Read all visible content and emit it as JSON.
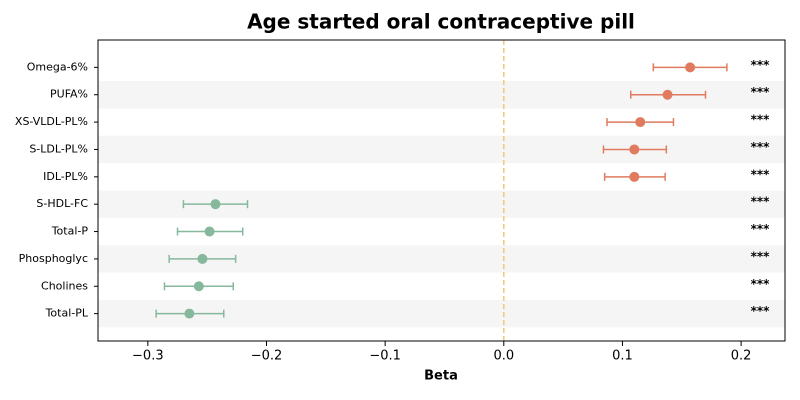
{
  "chart_data": {
    "type": "forest",
    "title": "Age started oral contraceptive pill",
    "x_label": "Beta",
    "categories": [
      "Omega-6%",
      "PUFA%",
      "XS-VLDL-PL%",
      "S-LDL-PL%",
      "IDL-PL%",
      "S-HDL-FC",
      "Total-P",
      "Phosphoglyc",
      "Cholines",
      "Total-PL"
    ],
    "values": [
      0.157,
      0.138,
      0.115,
      0.11,
      0.11,
      -0.243,
      -0.248,
      -0.254,
      -0.257,
      -0.265
    ],
    "lower": [
      0.126,
      0.107,
      0.087,
      0.084,
      0.085,
      -0.27,
      -0.275,
      -0.282,
      -0.286,
      -0.293
    ],
    "upper": [
      0.188,
      0.17,
      0.143,
      0.137,
      0.136,
      -0.216,
      -0.22,
      -0.226,
      -0.228,
      -0.236
    ],
    "colors": [
      "#e07b5f",
      "#e07b5f",
      "#e07b5f",
      "#e07b5f",
      "#e07b5f",
      "#86b89c",
      "#86b89c",
      "#86b89c",
      "#86b89c",
      "#86b89c"
    ],
    "annotations": [
      "***",
      "***",
      "***",
      "***",
      "***",
      "***",
      "***",
      "***",
      "***",
      "***"
    ],
    "xlim": [
      -0.342,
      0.237
    ],
    "xticks": [
      {
        "value": -0.3,
        "label": "−0.3"
      },
      {
        "value": -0.2,
        "label": "−0.2"
      },
      {
        "value": -0.1,
        "label": "−0.1"
      },
      {
        "value": 0,
        "label": "0.0"
      },
      0.1,
      0.2
    ],
    "reference_line_color": "#f2c77a"
  }
}
